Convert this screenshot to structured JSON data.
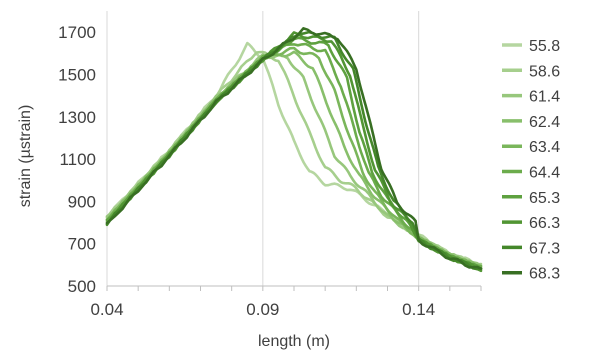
{
  "chart_data": {
    "type": "line",
    "xlabel": "length (m)",
    "ylabel": "strain (µstrain)",
    "xlim": [
      0.04,
      0.16
    ],
    "ylim": [
      500,
      1800
    ],
    "x_ticks": [
      "0.04",
      "0.09",
      "0.14"
    ],
    "y_ticks": [
      "500",
      "700",
      "900",
      "1100",
      "1300",
      "1500",
      "1700"
    ],
    "grid": "vertical",
    "legend_position": "right",
    "series": [
      {
        "name": "55.8",
        "color": "#b5d6a0",
        "points": [
          [
            0.04,
            830
          ],
          [
            0.06,
            1140
          ],
          [
            0.075,
            1400
          ],
          [
            0.085,
            1640
          ],
          [
            0.09,
            1580
          ],
          [
            0.095,
            1360
          ],
          [
            0.1,
            1180
          ],
          [
            0.105,
            1040
          ],
          [
            0.11,
            985
          ],
          [
            0.118,
            960
          ],
          [
            0.125,
            890
          ],
          [
            0.14,
            740
          ],
          [
            0.15,
            650
          ],
          [
            0.16,
            600
          ]
        ]
      },
      {
        "name": "58.6",
        "color": "#a6cf8d",
        "points": [
          [
            0.04,
            825
          ],
          [
            0.06,
            1140
          ],
          [
            0.075,
            1395
          ],
          [
            0.088,
            1610
          ],
          [
            0.095,
            1570
          ],
          [
            0.1,
            1400
          ],
          [
            0.105,
            1220
          ],
          [
            0.11,
            1060
          ],
          [
            0.115,
            1000
          ],
          [
            0.12,
            960
          ],
          [
            0.13,
            830
          ],
          [
            0.14,
            735
          ],
          [
            0.15,
            650
          ],
          [
            0.16,
            595
          ]
        ]
      },
      {
        "name": "61.4",
        "color": "#97c77c",
        "points": [
          [
            0.04,
            820
          ],
          [
            0.06,
            1135
          ],
          [
            0.075,
            1390
          ],
          [
            0.09,
            1590
          ],
          [
            0.098,
            1580
          ],
          [
            0.103,
            1480
          ],
          [
            0.108,
            1300
          ],
          [
            0.113,
            1120
          ],
          [
            0.118,
            1020
          ],
          [
            0.122,
            960
          ],
          [
            0.13,
            830
          ],
          [
            0.14,
            730
          ],
          [
            0.15,
            648
          ],
          [
            0.16,
            592
          ]
        ]
      },
      {
        "name": "62.4",
        "color": "#88bf6b",
        "points": [
          [
            0.04,
            815
          ],
          [
            0.06,
            1130
          ],
          [
            0.075,
            1385
          ],
          [
            0.09,
            1580
          ],
          [
            0.1,
            1600
          ],
          [
            0.106,
            1530
          ],
          [
            0.111,
            1350
          ],
          [
            0.116,
            1160
          ],
          [
            0.121,
            1020
          ],
          [
            0.125,
            940
          ],
          [
            0.132,
            820
          ],
          [
            0.14,
            728
          ],
          [
            0.15,
            645
          ],
          [
            0.16,
            590
          ]
        ]
      },
      {
        "name": "63.4",
        "color": "#7ab65b",
        "points": [
          [
            0.04,
            812
          ],
          [
            0.06,
            1128
          ],
          [
            0.075,
            1380
          ],
          [
            0.09,
            1580
          ],
          [
            0.1,
            1620
          ],
          [
            0.108,
            1580
          ],
          [
            0.113,
            1420
          ],
          [
            0.118,
            1200
          ],
          [
            0.122,
            1040
          ],
          [
            0.126,
            940
          ],
          [
            0.133,
            815
          ],
          [
            0.14,
            725
          ],
          [
            0.15,
            642
          ],
          [
            0.16,
            588
          ]
        ]
      },
      {
        "name": "64.4",
        "color": "#6cac4c",
        "points": [
          [
            0.04,
            808
          ],
          [
            0.06,
            1125
          ],
          [
            0.075,
            1378
          ],
          [
            0.09,
            1578
          ],
          [
            0.1,
            1650
          ],
          [
            0.11,
            1610
          ],
          [
            0.115,
            1450
          ],
          [
            0.12,
            1210
          ],
          [
            0.124,
            1030
          ],
          [
            0.128,
            930
          ],
          [
            0.135,
            810
          ],
          [
            0.14,
            722
          ],
          [
            0.15,
            640
          ],
          [
            0.16,
            585
          ]
        ]
      },
      {
        "name": "65.3",
        "color": "#5ea13f",
        "points": [
          [
            0.04,
            805
          ],
          [
            0.06,
            1122
          ],
          [
            0.075,
            1375
          ],
          [
            0.09,
            1575
          ],
          [
            0.1,
            1670
          ],
          [
            0.111,
            1640
          ],
          [
            0.117,
            1480
          ],
          [
            0.121,
            1230
          ],
          [
            0.125,
            1040
          ],
          [
            0.13,
            910
          ],
          [
            0.136,
            808
          ],
          [
            0.14,
            720
          ],
          [
            0.15,
            638
          ],
          [
            0.16,
            582
          ]
        ]
      },
      {
        "name": "66.3",
        "color": "#519533",
        "points": [
          [
            0.04,
            800
          ],
          [
            0.06,
            1120
          ],
          [
            0.075,
            1372
          ],
          [
            0.09,
            1572
          ],
          [
            0.1,
            1690
          ],
          [
            0.112,
            1660
          ],
          [
            0.118,
            1500
          ],
          [
            0.122,
            1260
          ],
          [
            0.126,
            1050
          ],
          [
            0.131,
            900
          ],
          [
            0.137,
            805
          ],
          [
            0.14,
            718
          ],
          [
            0.15,
            636
          ],
          [
            0.16,
            580
          ]
        ]
      },
      {
        "name": "67.3",
        "color": "#44872a",
        "points": [
          [
            0.04,
            795
          ],
          [
            0.06,
            1118
          ],
          [
            0.075,
            1370
          ],
          [
            0.09,
            1570
          ],
          [
            0.102,
            1700
          ],
          [
            0.113,
            1670
          ],
          [
            0.119,
            1520
          ],
          [
            0.123,
            1280
          ],
          [
            0.127,
            1060
          ],
          [
            0.132,
            900
          ],
          [
            0.138,
            802
          ],
          [
            0.14,
            716
          ],
          [
            0.15,
            634
          ],
          [
            0.16,
            578
          ]
        ]
      },
      {
        "name": "68.3",
        "color": "#386f23",
        "points": [
          [
            0.04,
            790
          ],
          [
            0.06,
            1115
          ],
          [
            0.075,
            1368
          ],
          [
            0.09,
            1568
          ],
          [
            0.103,
            1710
          ],
          [
            0.114,
            1675
          ],
          [
            0.12,
            1530
          ],
          [
            0.124,
            1290
          ],
          [
            0.128,
            1060
          ],
          [
            0.133,
            895
          ],
          [
            0.139,
            800
          ],
          [
            0.14,
            715
          ],
          [
            0.15,
            632
          ],
          [
            0.16,
            575
          ]
        ]
      }
    ]
  }
}
